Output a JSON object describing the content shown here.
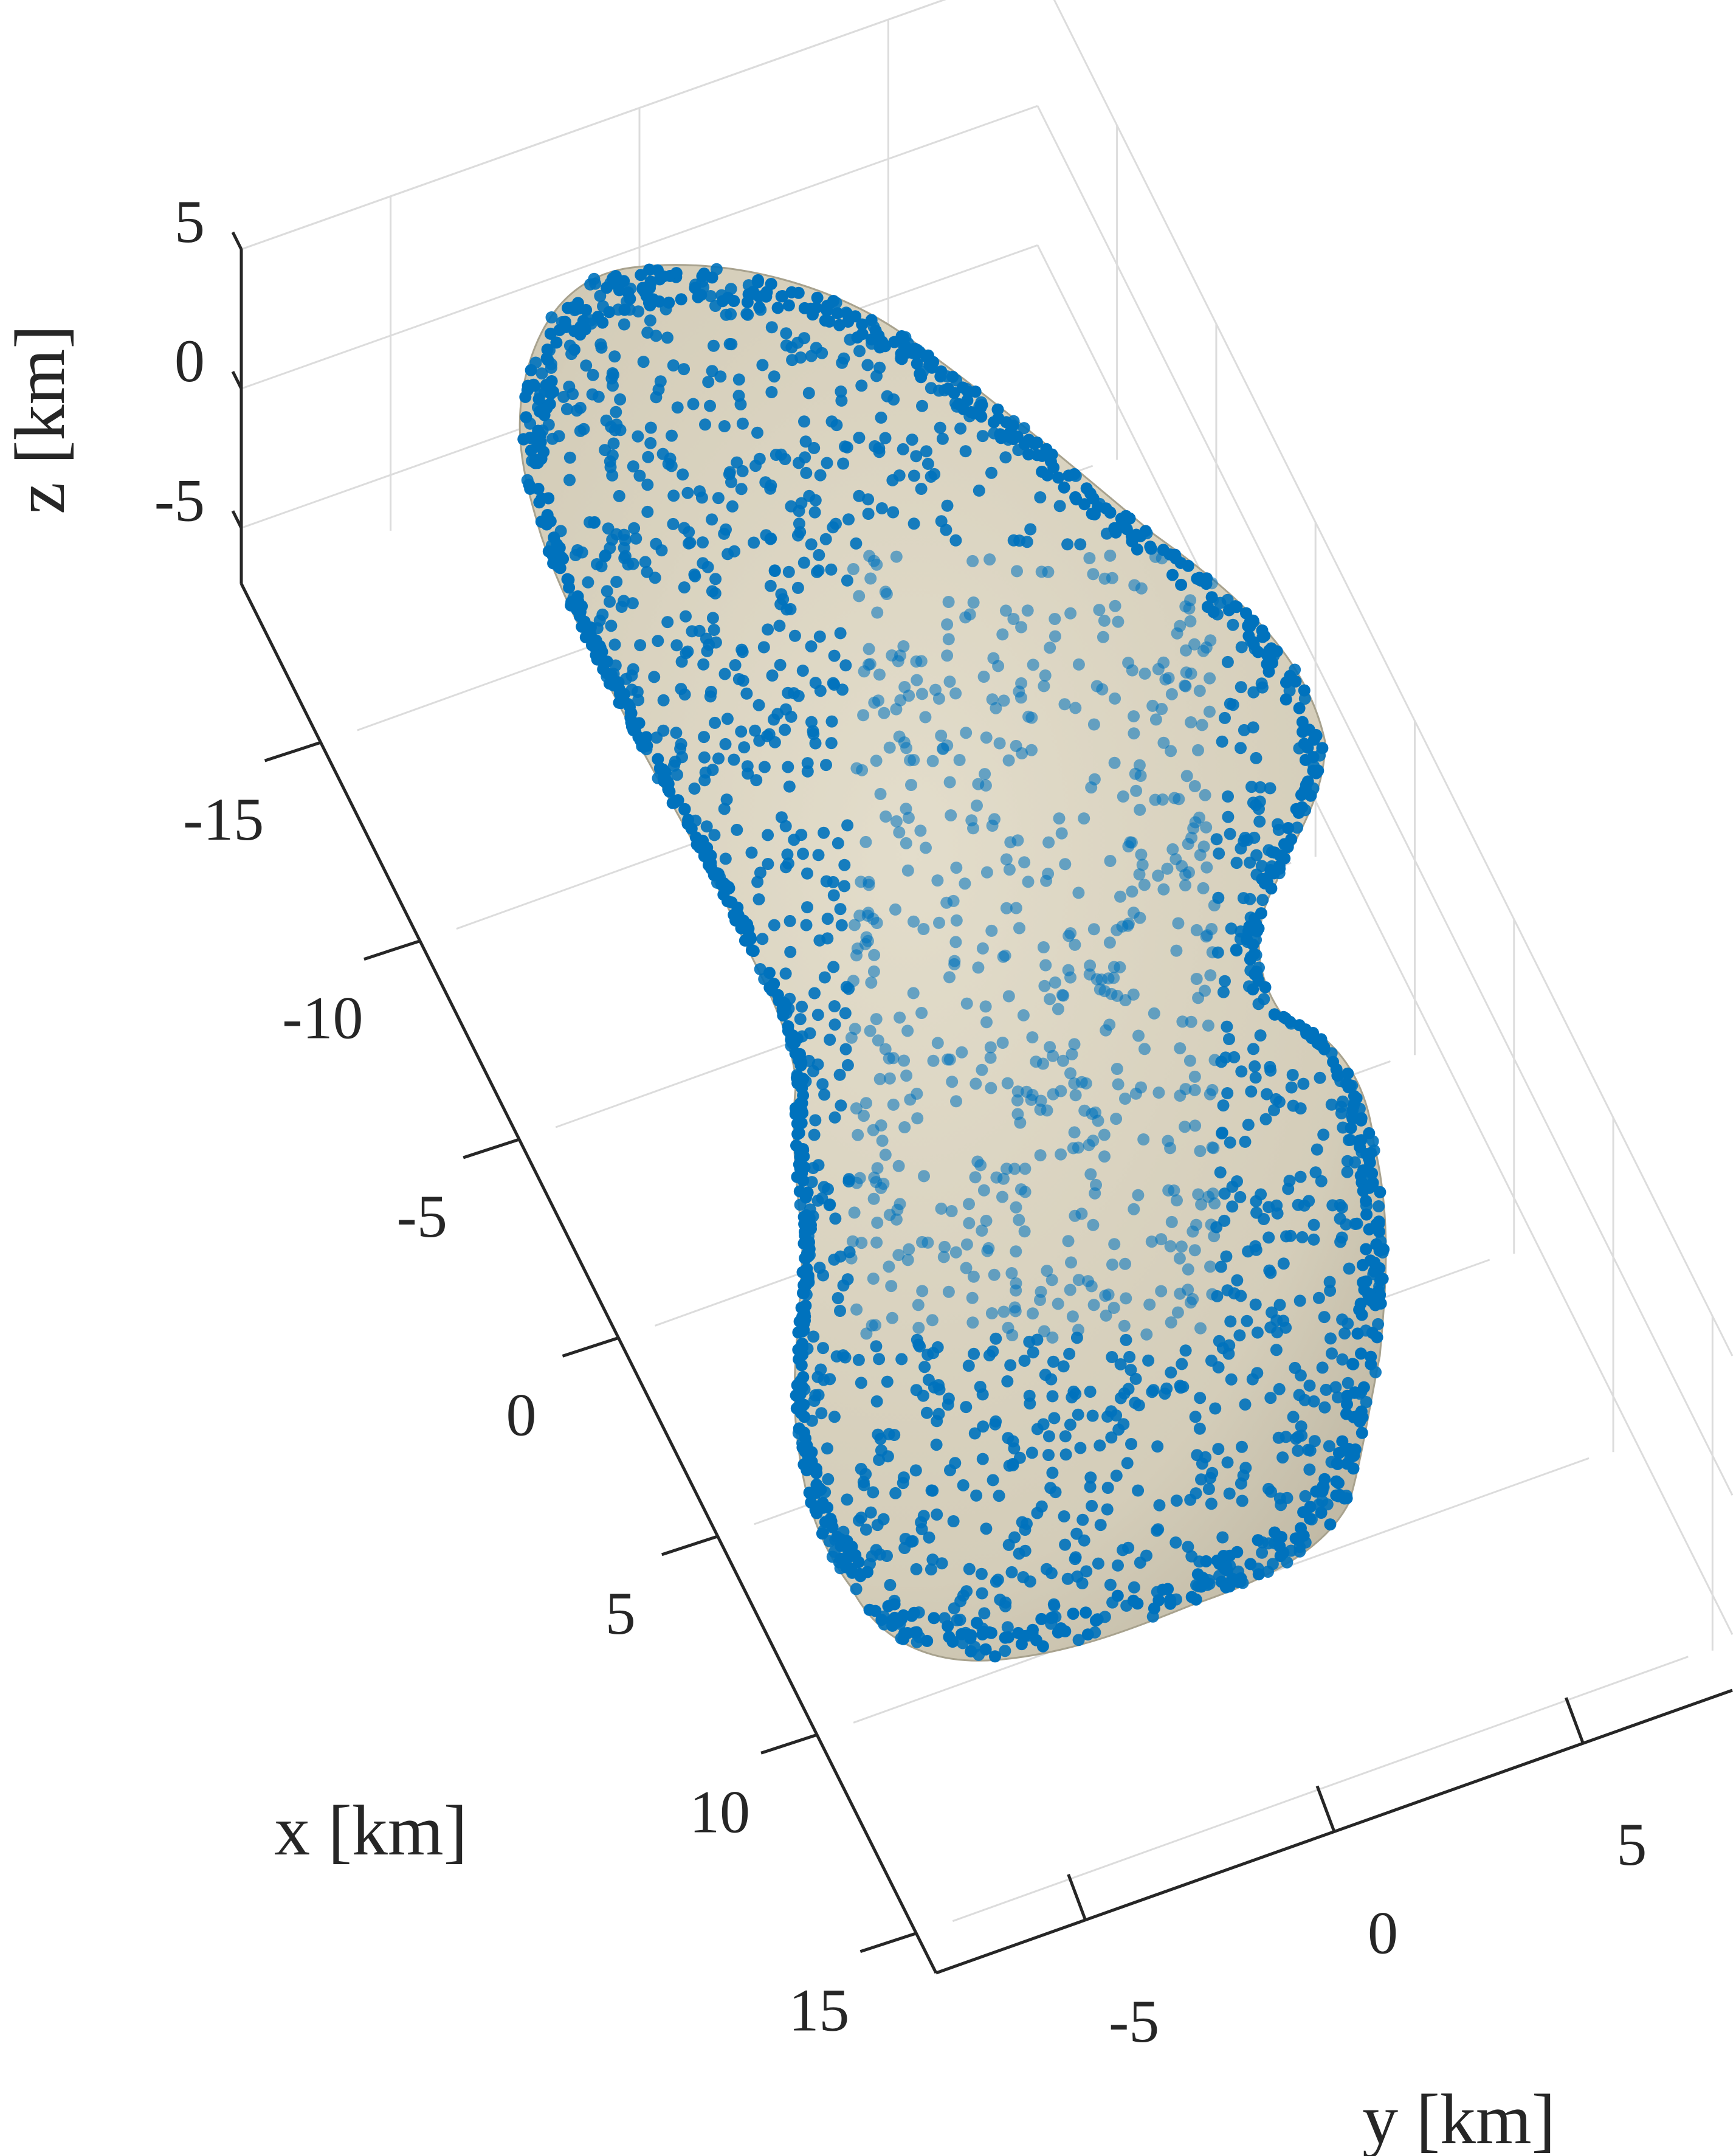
{
  "chart_data": {
    "type": "scatter",
    "projection": "3d",
    "grid": true,
    "axes": {
      "x": {
        "label": "x [km]",
        "ticks": [
          -15,
          -10,
          -5,
          0,
          5,
          10,
          15
        ],
        "tick_labels": [
          "-15",
          "-10",
          "-5",
          "0",
          "5",
          "10",
          "15"
        ],
        "range": [
          -19,
          16
        ]
      },
      "y": {
        "label": "y [km]",
        "ticks": [
          -5,
          0,
          5
        ],
        "tick_labels": [
          "-5",
          "0",
          "5"
        ],
        "range": [
          -8,
          8
        ]
      },
      "z": {
        "label": "z [km]",
        "ticks": [
          -5,
          0,
          5
        ],
        "tick_labels": [
          "-5",
          "0",
          "5"
        ],
        "range": [
          -7,
          5
        ]
      }
    },
    "series": [
      {
        "kind": "surface",
        "color": "#d6d0bd"
      },
      {
        "kind": "points",
        "color": "#0072bd"
      }
    ]
  }
}
